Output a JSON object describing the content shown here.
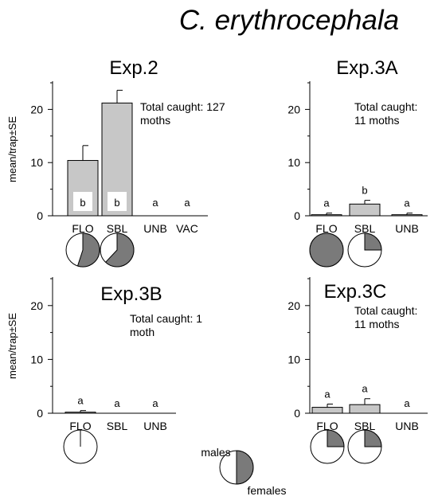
{
  "figure": {
    "title": "C. erythrocephala",
    "legend": {
      "males": "males",
      "females": "females",
      "male_fraction": 0.5
    }
  },
  "chart_data": [
    {
      "type": "bar",
      "title": "Exp.2",
      "ylabel": "mean/trap±SE",
      "ylim": [
        0,
        25
      ],
      "yticks": [
        0,
        10,
        20
      ],
      "categories": [
        "FLO",
        "SBL",
        "UNB",
        "VAC"
      ],
      "values": [
        10.4,
        21.2,
        0,
        0
      ],
      "errors": [
        2.8,
        2.4,
        0,
        0
      ],
      "letters": [
        "b",
        "b",
        "a",
        "a"
      ],
      "letters_boxed_in_bar": true,
      "annotation": [
        "Total caught: 127",
        "moths"
      ],
      "pies_male_fraction": [
        0.45,
        0.38,
        null,
        null
      ]
    },
    {
      "type": "bar",
      "title": "Exp.3A",
      "ylabel": "",
      "ylim": [
        0,
        25
      ],
      "yticks": [
        0,
        10,
        20
      ],
      "categories": [
        "FLO",
        "SBL",
        "UNB"
      ],
      "values": [
        0.2,
        2.2,
        0.2
      ],
      "errors": [
        0.3,
        0.7,
        0.3
      ],
      "letters": [
        "a",
        "b",
        "a"
      ],
      "letters_boxed_in_bar": false,
      "annotation": [
        "Total caught:",
        "11 moths"
      ],
      "pies_male_fraction": [
        0.0,
        0.75,
        null
      ]
    },
    {
      "type": "bar",
      "title": "Exp.3B",
      "ylabel": "mean/trap±SE",
      "ylim": [
        0,
        25
      ],
      "yticks": [
        0,
        10,
        20
      ],
      "categories": [
        "FLO",
        "SBL",
        "UNB"
      ],
      "values": [
        0.2,
        0,
        0
      ],
      "errors": [
        0.3,
        0,
        0
      ],
      "letters": [
        "a",
        "a",
        "a"
      ],
      "letters_boxed_in_bar": false,
      "annotation": [
        "Total caught: 1",
        "moth"
      ],
      "pies_male_fraction": [
        1.0,
        null,
        null
      ]
    },
    {
      "type": "bar",
      "title": "Exp.3C",
      "ylabel": "",
      "ylim": [
        0,
        25
      ],
      "yticks": [
        0,
        10,
        20
      ],
      "categories": [
        "FLO",
        "SBL",
        "UNB"
      ],
      "values": [
        1.1,
        1.6,
        0
      ],
      "errors": [
        0.6,
        1.1,
        0
      ],
      "letters": [
        "a",
        "a",
        "a"
      ],
      "letters_boxed_in_bar": false,
      "annotation": [
        "Total caught:",
        "11 moths"
      ],
      "pies_male_fraction": [
        0.75,
        0.75,
        null
      ]
    }
  ]
}
